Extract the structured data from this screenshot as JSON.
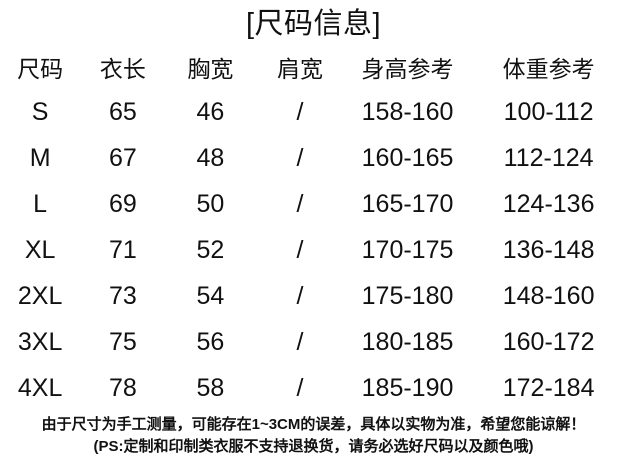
{
  "title": "[尺码信息]",
  "table": {
    "headers": [
      "尺码",
      "衣长",
      "胸宽",
      "肩宽",
      "身高参考",
      "体重参考"
    ],
    "rows": [
      [
        "S",
        "65",
        "46",
        "/",
        "158-160",
        "100-112"
      ],
      [
        "M",
        "67",
        "48",
        "/",
        "160-165",
        "112-124"
      ],
      [
        "L",
        "69",
        "50",
        "/",
        "165-170",
        "124-136"
      ],
      [
        "XL",
        "71",
        "52",
        "/",
        "170-175",
        "136-148"
      ],
      [
        "2XL",
        "73",
        "54",
        "/",
        "175-180",
        "148-160"
      ],
      [
        "3XL",
        "75",
        "56",
        "/",
        "180-185",
        "160-172"
      ],
      [
        "4XL",
        "78",
        "58",
        "/",
        "185-190",
        "172-184"
      ]
    ]
  },
  "footer": {
    "line1": "由于尺寸为手工测量，可能存在1~3CM的误差，具体以实物为准，希望您能谅解！",
    "line2": "(PS:定制和印制类衣服不支持退换货，请务必选好尺码以及颜色哦)"
  },
  "colors": {
    "text": "#111111",
    "background": "#ffffff"
  }
}
